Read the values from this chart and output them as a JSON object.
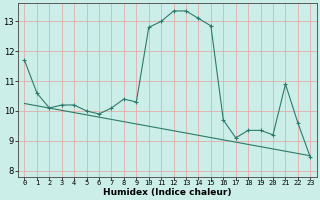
{
  "xlabel": "Humidex (Indice chaleur)",
  "bg_color": "#cceee8",
  "line_color": "#2d7a6a",
  "grid_color": "#e8a0a0",
  "xlim": [
    -0.5,
    23.5
  ],
  "ylim": [
    7.8,
    13.6
  ],
  "yticks": [
    8,
    9,
    10,
    11,
    12,
    13
  ],
  "xticks": [
    0,
    1,
    2,
    3,
    4,
    5,
    6,
    7,
    8,
    9,
    10,
    11,
    12,
    13,
    14,
    15,
    16,
    17,
    18,
    19,
    20,
    21,
    22,
    23
  ],
  "main_x": [
    0,
    1,
    2,
    3,
    4,
    5,
    6,
    7,
    8,
    9,
    10,
    11,
    12,
    13,
    14,
    15,
    16,
    17,
    18,
    19,
    20,
    21,
    22,
    23
  ],
  "main_y": [
    11.7,
    10.6,
    10.1,
    10.2,
    10.2,
    10.0,
    9.9,
    10.1,
    10.4,
    10.3,
    12.8,
    13.0,
    13.35,
    13.35,
    13.1,
    12.85,
    9.7,
    9.1,
    9.35,
    9.35,
    9.2,
    10.9,
    9.6,
    8.45
  ],
  "trend_x": [
    0,
    23
  ],
  "trend_y": [
    10.25,
    8.5
  ]
}
